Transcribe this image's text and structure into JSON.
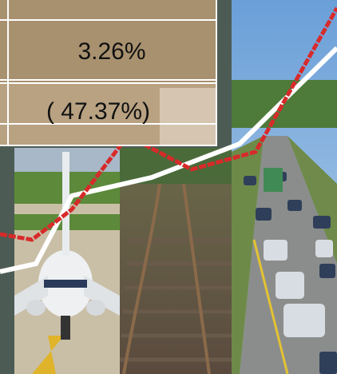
{
  "table": {
    "rows": [
      [
        "3.26%"
      ],
      [
        "( 47.37%)"
      ]
    ]
  }
}
